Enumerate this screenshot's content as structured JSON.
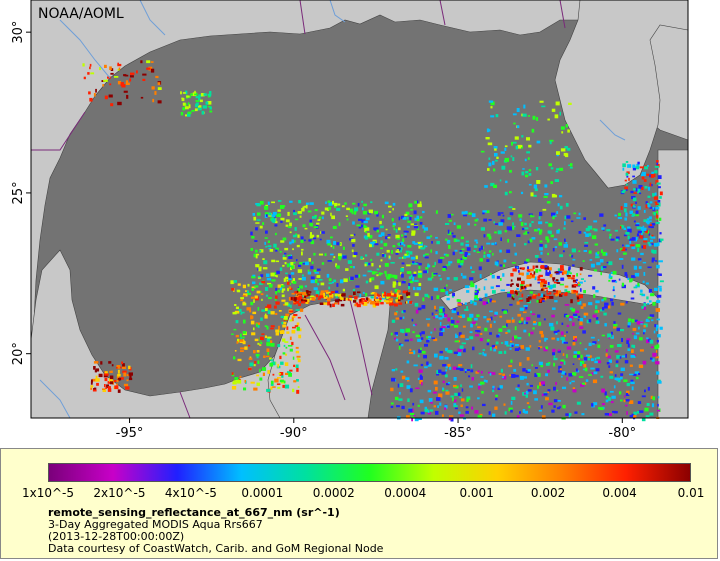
{
  "map": {
    "agency": "NOAA/AOML",
    "lon_ticks": [
      {
        "lon": -95,
        "label": "-95°"
      },
      {
        "lon": -90,
        "label": "-90°"
      },
      {
        "lon": -85,
        "label": "-85°"
      },
      {
        "lon": -80,
        "label": "-80°"
      }
    ],
    "lat_ticks": [
      {
        "lat": 30,
        "label": "30°"
      },
      {
        "lat": 25,
        "label": "25°"
      },
      {
        "lat": 20,
        "label": "20°"
      }
    ],
    "colors": {
      "ocean_nodata": "#737373",
      "land": "#c8c8c8",
      "coastline": "#444444",
      "borders": "#7a2a7a",
      "rivers": "#6f9fd8"
    }
  },
  "legend": {
    "colorbar_stops": [
      "#7a007a",
      "#c800c8",
      "#2020ff",
      "#00bfff",
      "#00e0a0",
      "#20ff20",
      "#c0ff00",
      "#ffd000",
      "#ff7f00",
      "#ff2000",
      "#8b0000"
    ],
    "tick_labels": [
      "1x10^-5",
      "2x10^-5",
      "4x10^-5",
      "0.0001",
      "0.0002",
      "0.0004",
      "0.001",
      "0.002",
      "0.004",
      "0.01"
    ],
    "title": "remote_sensing_reflectance_at_667_nm (sr^-1)",
    "description": "3-Day Aggregated MODIS Aqua Rrs667",
    "date": "(2013-12-28T00:00:00Z)",
    "credit": "Data courtesy of CoastWatch, Carib. and GoM Regional Node"
  }
}
